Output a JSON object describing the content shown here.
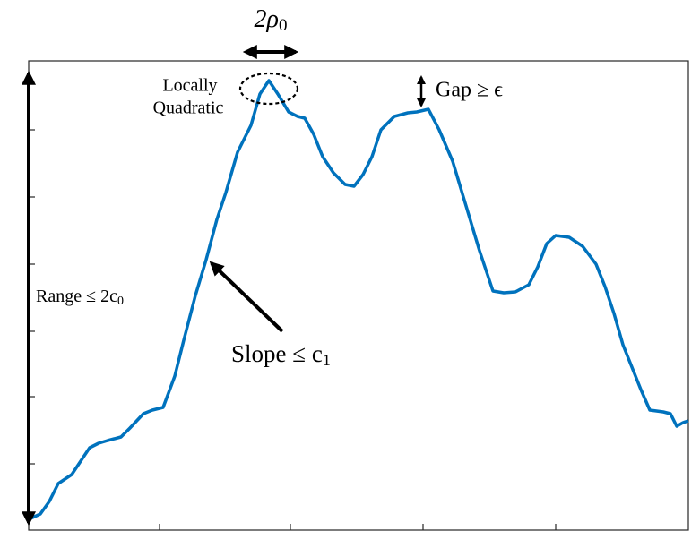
{
  "annotations": {
    "width": {
      "main": "2ρ",
      "sub": "0"
    },
    "peak": {
      "line1": "Locally",
      "line2": "Quadratic"
    },
    "gap": {
      "main": "Gap ≥ ϵ"
    },
    "range": {
      "main": "Range ≤ 2c",
      "sub": "0"
    },
    "slope": {
      "main": "Slope ≤ c",
      "sub": "1"
    }
  }
}
